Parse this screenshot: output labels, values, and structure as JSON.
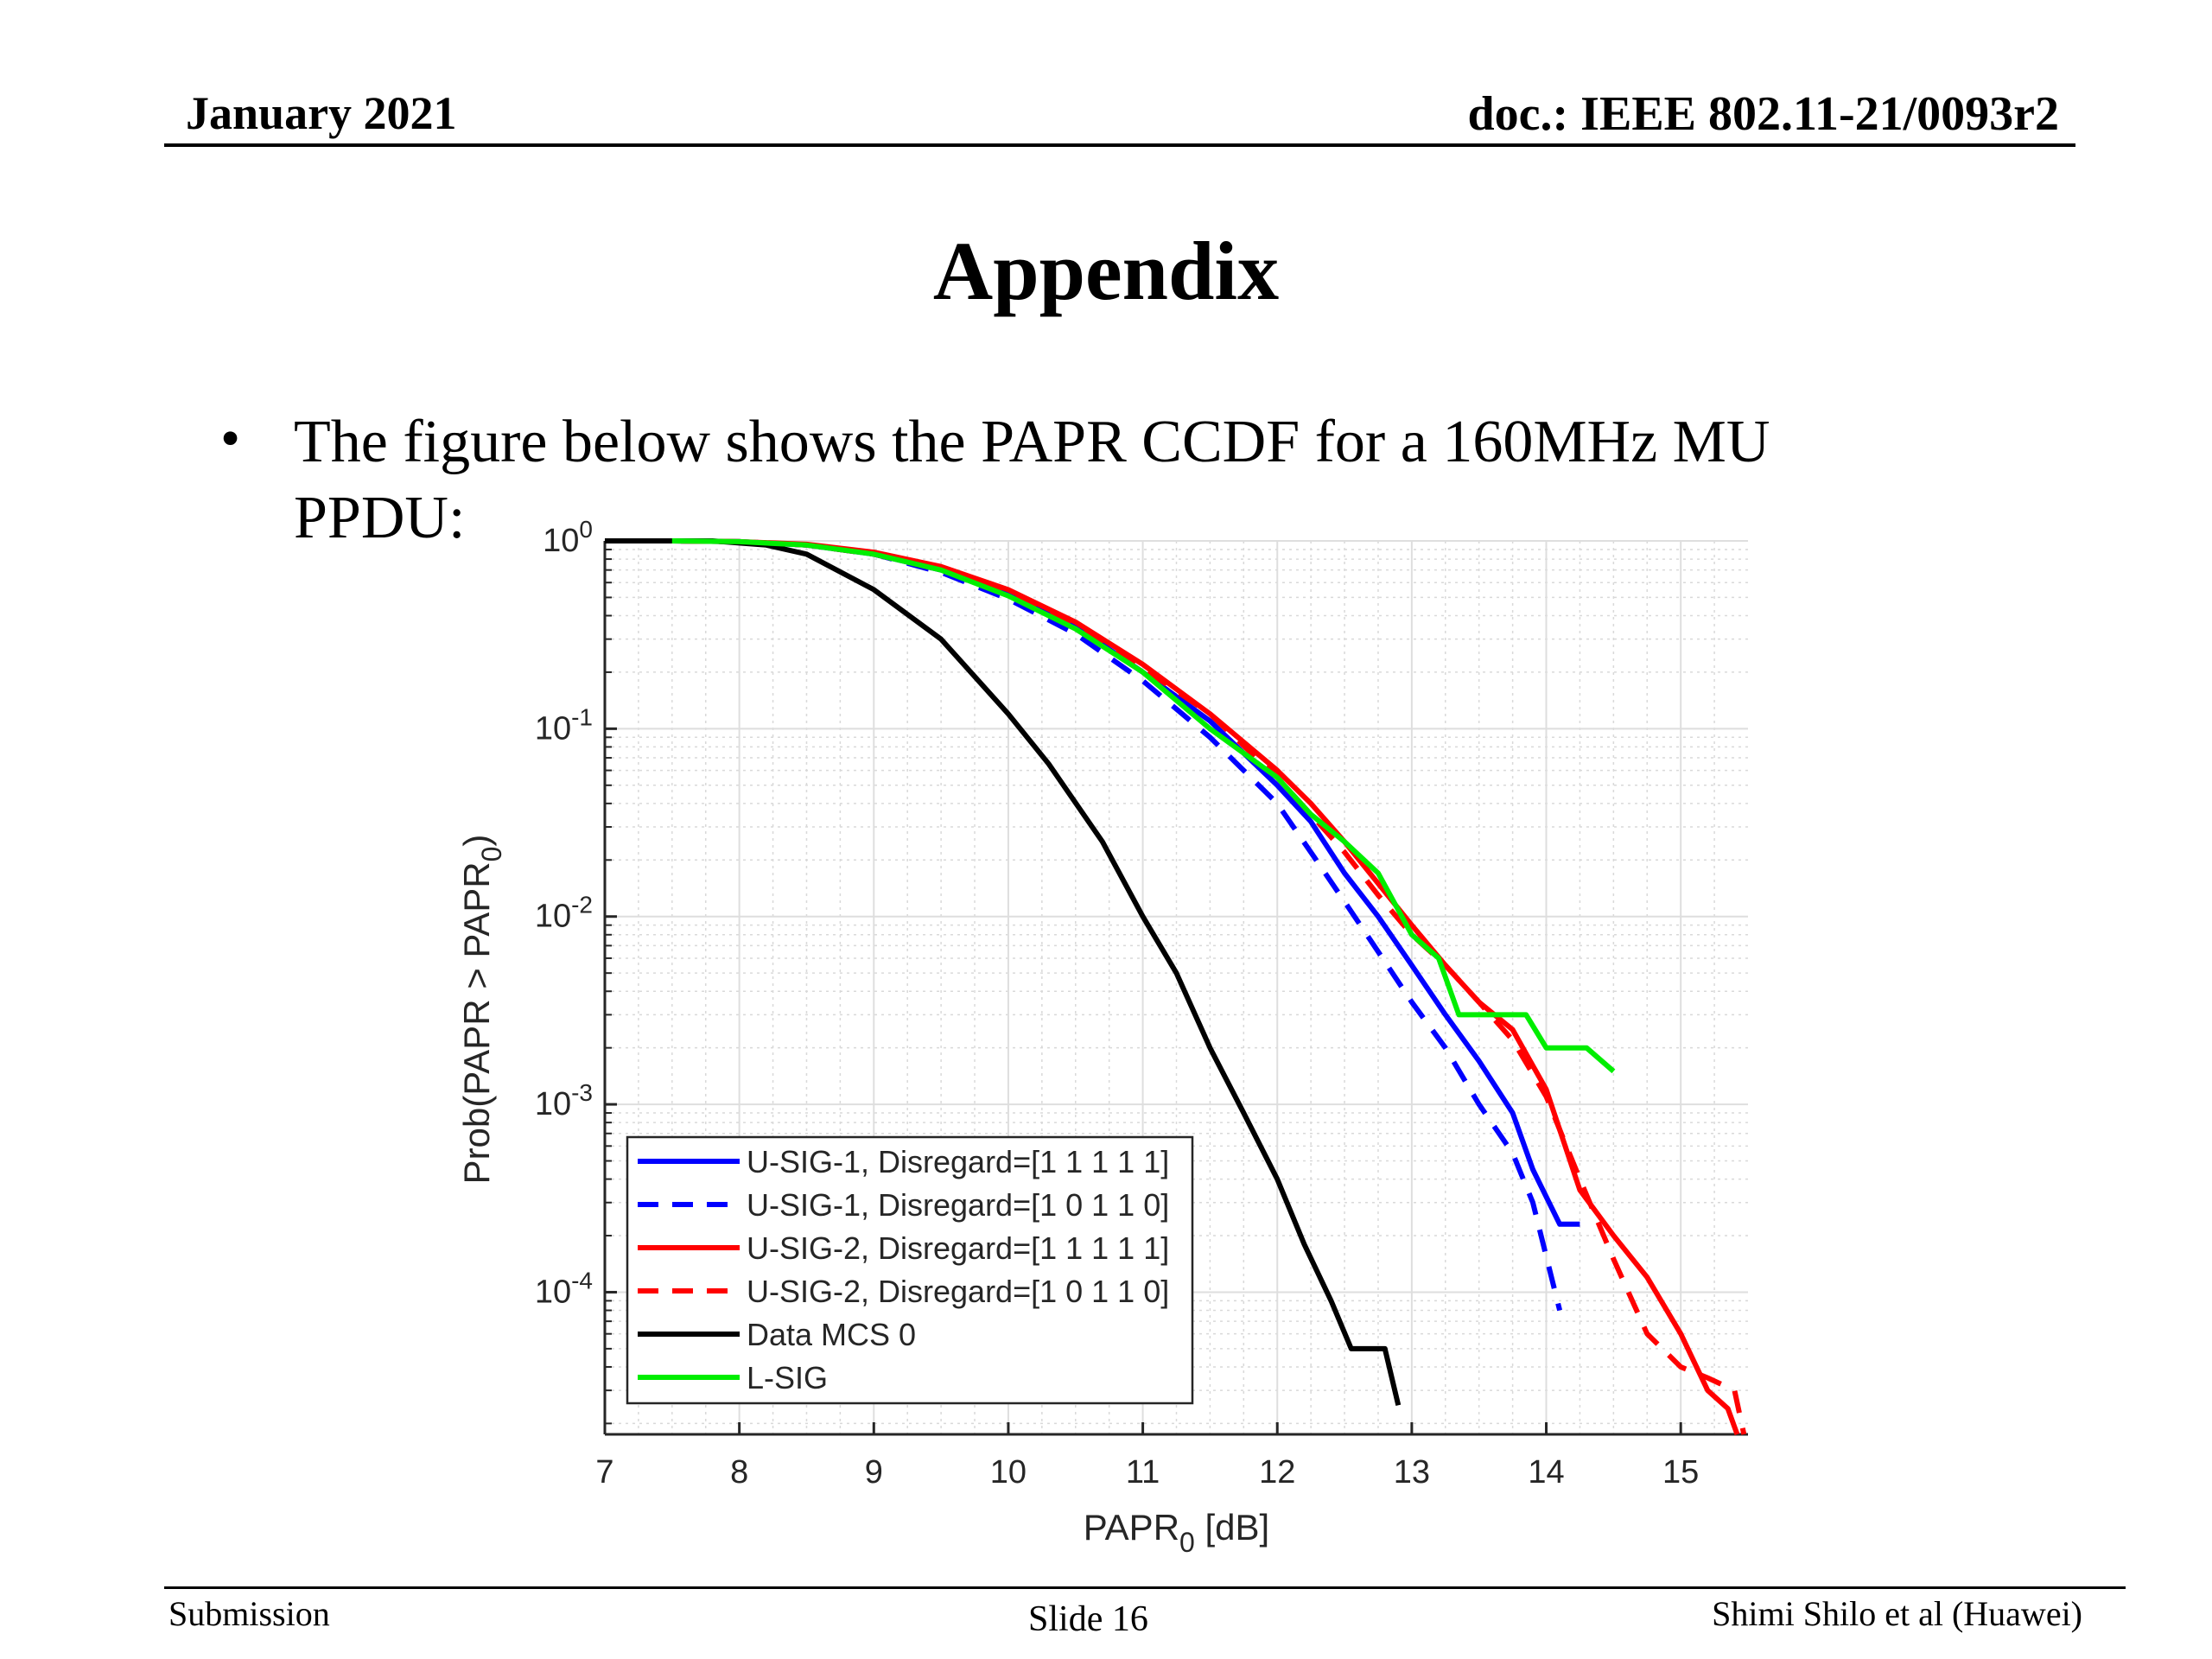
{
  "header": {
    "date": "January 2021",
    "doc": "doc.: IEEE 802.11-21/0093r2"
  },
  "slide": {
    "title": "Appendix",
    "bullet_line1": "The figure below shows the PAPR CCDF for a 160MHz MU",
    "bullet_line2": "PPDU:"
  },
  "footer": {
    "left": "Submission",
    "center": "Slide 16",
    "right": "Shimi Shilo et al (Huawei)"
  },
  "chart_data": {
    "type": "line",
    "xlabel": "PAPR",
    "xlabel_sub": "0",
    "xlabel_unit": " [dB]",
    "ylabel_main": "Prob(PAPR > PAPR",
    "ylabel_sub": "0",
    "ylabel_end": ")",
    "xlim": [
      7,
      15.5
    ],
    "ylim": [
      1.75e-05,
      1
    ],
    "yscale": "log",
    "grid": true,
    "legend_position": "bottom-left",
    "xticks": [
      7,
      8,
      9,
      10,
      11,
      12,
      13,
      14,
      15
    ],
    "yticks": [
      {
        "value": 1,
        "base": "10",
        "exp": "0"
      },
      {
        "value": 0.1,
        "base": "10",
        "exp": "-1"
      },
      {
        "value": 0.01,
        "base": "10",
        "exp": "-2"
      },
      {
        "value": 0.001,
        "base": "10",
        "exp": "-3"
      },
      {
        "value": 0.0001,
        "base": "10",
        "exp": "-4"
      }
    ],
    "series": [
      {
        "name": "U-SIG-1, Disregard=[1 1 1 1 1]",
        "color": "#0000ff",
        "dash": false,
        "x": [
          7.0,
          7.5,
          8.0,
          8.5,
          9.0,
          9.5,
          10.0,
          10.5,
          11.0,
          11.5,
          12.0,
          12.25,
          12.5,
          12.75,
          13.0,
          13.25,
          13.5,
          13.75,
          13.9,
          14.1,
          14.25
        ],
        "y": [
          1.0,
          1.0,
          0.99,
          0.95,
          0.85,
          0.7,
          0.52,
          0.35,
          0.2,
          0.11,
          0.05,
          0.032,
          0.017,
          0.01,
          0.0055,
          0.003,
          0.0017,
          0.0009,
          0.00045,
          0.00023,
          0.00023
        ]
      },
      {
        "name": "U-SIG-1, Disregard=[1 0 1 1 0]",
        "color": "#0000ff",
        "dash": true,
        "x": [
          7.0,
          7.5,
          8.0,
          8.5,
          9.0,
          9.5,
          10.0,
          10.5,
          11.0,
          11.5,
          12.0,
          12.25,
          12.5,
          12.75,
          13.0,
          13.25,
          13.5,
          13.75,
          13.9,
          14.1
        ],
        "y": [
          1.0,
          1.0,
          0.99,
          0.95,
          0.85,
          0.68,
          0.49,
          0.32,
          0.18,
          0.09,
          0.04,
          0.022,
          0.012,
          0.0065,
          0.0035,
          0.002,
          0.001,
          0.00055,
          0.0003,
          8e-05
        ]
      },
      {
        "name": "U-SIG-2, Disregard=[1 1 1 1 1]",
        "color": "#ff0000",
        "dash": false,
        "x": [
          7.0,
          7.5,
          8.0,
          8.5,
          9.0,
          9.5,
          10.0,
          10.5,
          11.0,
          11.5,
          12.0,
          12.25,
          12.5,
          12.75,
          13.0,
          13.25,
          13.5,
          13.75,
          14.0,
          14.25,
          14.5,
          14.75,
          15.0,
          15.2,
          15.35,
          15.42
        ],
        "y": [
          1.0,
          1.0,
          0.99,
          0.96,
          0.87,
          0.73,
          0.55,
          0.37,
          0.22,
          0.12,
          0.06,
          0.04,
          0.025,
          0.015,
          0.009,
          0.0055,
          0.0035,
          0.0025,
          0.0012,
          0.00035,
          0.0002,
          0.00012,
          6e-05,
          3e-05,
          2.4e-05,
          1.75e-05
        ]
      },
      {
        "name": "U-SIG-2, Disregard=[1 0 1 1 0]",
        "color": "#ff0000",
        "dash": true,
        "x": [
          7.0,
          7.5,
          8.0,
          8.5,
          9.0,
          9.5,
          10.0,
          10.5,
          11.0,
          11.5,
          12.0,
          12.25,
          12.5,
          12.75,
          13.0,
          13.25,
          13.5,
          13.75,
          14.0,
          14.25,
          14.5,
          14.75,
          15.0,
          15.2,
          15.4,
          15.47
        ],
        "y": [
          1.0,
          1.0,
          0.99,
          0.95,
          0.85,
          0.7,
          0.52,
          0.35,
          0.21,
          0.12,
          0.055,
          0.035,
          0.022,
          0.013,
          0.008,
          0.0055,
          0.0035,
          0.0022,
          0.0011,
          0.0004,
          0.00015,
          6e-05,
          4e-05,
          3.5e-05,
          3e-05,
          1.75e-05
        ]
      },
      {
        "name": "Data MCS 0",
        "color": "#000000",
        "dash": false,
        "x": [
          7.0,
          7.5,
          7.8,
          8.2,
          8.5,
          9.0,
          9.5,
          10.0,
          10.3,
          10.7,
          11.0,
          11.25,
          11.5,
          11.75,
          12.0,
          12.2,
          12.4,
          12.55,
          12.7,
          12.8,
          12.9
        ],
        "y": [
          1.0,
          1.0,
          1.0,
          0.95,
          0.85,
          0.55,
          0.3,
          0.12,
          0.065,
          0.025,
          0.01,
          0.005,
          0.002,
          0.0009,
          0.0004,
          0.00018,
          9e-05,
          5e-05,
          5e-05,
          5e-05,
          2.5e-05
        ]
      },
      {
        "name": "L-SIG",
        "color": "#00ee00",
        "dash": false,
        "x": [
          7.5,
          8.0,
          8.5,
          9.0,
          9.5,
          10.0,
          10.5,
          11.0,
          11.5,
          12.0,
          12.25,
          12.5,
          12.75,
          13.0,
          13.2,
          13.35,
          13.6,
          13.85,
          14.0,
          14.3,
          14.5
        ],
        "y": [
          1.0,
          0.99,
          0.95,
          0.85,
          0.7,
          0.51,
          0.34,
          0.2,
          0.1,
          0.055,
          0.035,
          0.025,
          0.017,
          0.008,
          0.006,
          0.003,
          0.003,
          0.003,
          0.002,
          0.002,
          0.0015
        ]
      }
    ]
  }
}
